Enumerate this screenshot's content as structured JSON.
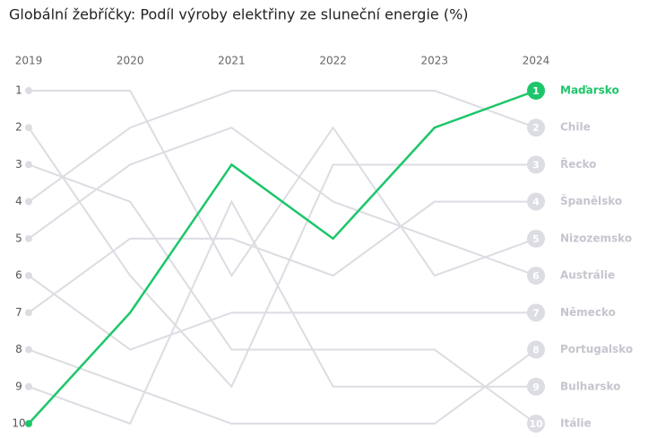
{
  "chart_data": {
    "type": "bump",
    "title": "Globální žebříčky: Podíl výroby elektřiny ze sluneční energie (%)",
    "categories": [
      "2019",
      "2020",
      "2021",
      "2022",
      "2023",
      "2024"
    ],
    "ylim": [
      1,
      10
    ],
    "y_inverted": true,
    "yticks": [
      1,
      2,
      3,
      4,
      5,
      6,
      7,
      8,
      9,
      10
    ],
    "highlight": "Maďarsko",
    "series": [
      {
        "name": "Chile",
        "color": "#dcdce3",
        "values": [
          4,
          2,
          1,
          1,
          1,
          2
        ]
      },
      {
        "name": "Řecko",
        "color": "#dcdce3",
        "values": [
          2,
          6,
          9,
          3,
          3,
          3
        ]
      },
      {
        "name": "Španělsko",
        "color": "#dcdce3",
        "values": [
          7,
          5,
          5,
          6,
          4,
          4
        ]
      },
      {
        "name": "Nizozemsko",
        "color": "#dcdce3",
        "values": [
          1,
          1,
          6,
          2,
          6,
          5
        ]
      },
      {
        "name": "Austrálie",
        "color": "#dcdce3",
        "values": [
          5,
          3,
          2,
          4,
          5,
          6
        ]
      },
      {
        "name": "Německo",
        "color": "#dcdce3",
        "values": [
          6,
          8,
          7,
          7,
          7,
          7
        ]
      },
      {
        "name": "Portugalsko",
        "color": "#dcdce3",
        "values": [
          8,
          9,
          10,
          10,
          10,
          8
        ]
      },
      {
        "name": "Bulharsko",
        "color": "#dcdce3",
        "values": [
          9,
          10,
          4,
          9,
          9,
          9
        ]
      },
      {
        "name": "Itálie",
        "color": "#dcdce3",
        "values": [
          3,
          4,
          8,
          8,
          8,
          10
        ]
      },
      {
        "name": "Maďarsko",
        "color": "#1ec66a",
        "values": [
          10,
          7,
          3,
          5,
          2,
          1
        ]
      }
    ]
  }
}
